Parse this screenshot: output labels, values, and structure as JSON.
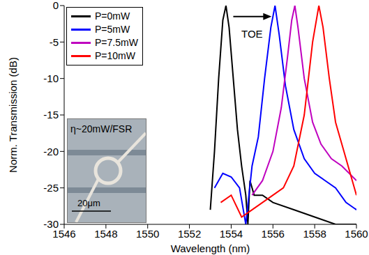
{
  "chart_data": {
    "type": "line",
    "xlabel": "Wavelength (nm)",
    "ylabel": "Norm. Transmission (dB)",
    "xlim": [
      1546,
      1560
    ],
    "xticks": [
      1546,
      1548,
      1550,
      1552,
      1554,
      1556,
      1558,
      1560
    ],
    "ylim": [
      -30,
      0
    ],
    "yticks": [
      -30,
      -25,
      -20,
      -15,
      -10,
      -5,
      0
    ],
    "grid": false,
    "legend": "upper left",
    "series": [
      {
        "name": "P=0mW",
        "color": "#000000",
        "x": [
          1553.0,
          1553.2,
          1553.4,
          1553.6,
          1553.75,
          1553.9,
          1554.1,
          1554.3,
          1554.5,
          1554.7,
          1554.8,
          1554.9,
          1555.1,
          1555.5,
          1556,
          1557,
          1558,
          1559,
          1560
        ],
        "values": [
          -28,
          -20,
          -10,
          -2,
          0,
          -3,
          -10,
          -17,
          -22,
          -26,
          -30,
          -24,
          -26,
          -26,
          -27,
          -28,
          -29,
          -30,
          -30
        ]
      },
      {
        "name": "P=5mW",
        "color": "#0000ff",
        "x": [
          1553.2,
          1553.6,
          1554.0,
          1554.4,
          1554.7,
          1555.0,
          1555.3,
          1555.6,
          1555.9,
          1556.1,
          1556.3,
          1556.6,
          1557.0,
          1557.5,
          1558,
          1558.5,
          1559,
          1559.5,
          1560
        ],
        "values": [
          -25,
          -23,
          -23.5,
          -25,
          -30,
          -22,
          -18,
          -10,
          -3,
          0,
          -4,
          -11,
          -17,
          -21,
          -23,
          -24,
          -25,
          -27,
          -28
        ]
      },
      {
        "name": "P=7.5mW",
        "color": "#bf00bf",
        "x": [
          1555.0,
          1555.5,
          1556.0,
          1556.4,
          1556.7,
          1556.9,
          1557.05,
          1557.2,
          1557.5,
          1557.9,
          1558.3,
          1558.8,
          1559.3,
          1560
        ],
        "values": [
          -26,
          -24,
          -20,
          -14,
          -7,
          -2,
          0,
          -3,
          -10,
          -16,
          -19,
          -21,
          -22,
          -24
        ]
      },
      {
        "name": "P=10mW",
        "color": "#ff0000",
        "x": [
          1553.5,
          1554,
          1554.5,
          1555,
          1555.5,
          1556,
          1556.5,
          1557,
          1557.5,
          1557.9,
          1558.2,
          1558.4,
          1558.7,
          1559.0,
          1559.4,
          1559.8,
          1560
        ],
        "values": [
          -27,
          -26,
          -29,
          -28,
          -27,
          -26,
          -25,
          -22,
          -15,
          -5,
          0,
          -3,
          -10,
          -16,
          -20,
          -24,
          -26
        ]
      }
    ],
    "annotations": [
      {
        "text": "TOE",
        "x": 1555,
        "y": -4,
        "arrow_from": [
          1554.1,
          -1.5
        ],
        "arrow_to": [
          1555.8,
          -1.5
        ]
      }
    ],
    "inset": {
      "label": "η~20mW/FSR",
      "scale_bar": "20μm"
    }
  }
}
